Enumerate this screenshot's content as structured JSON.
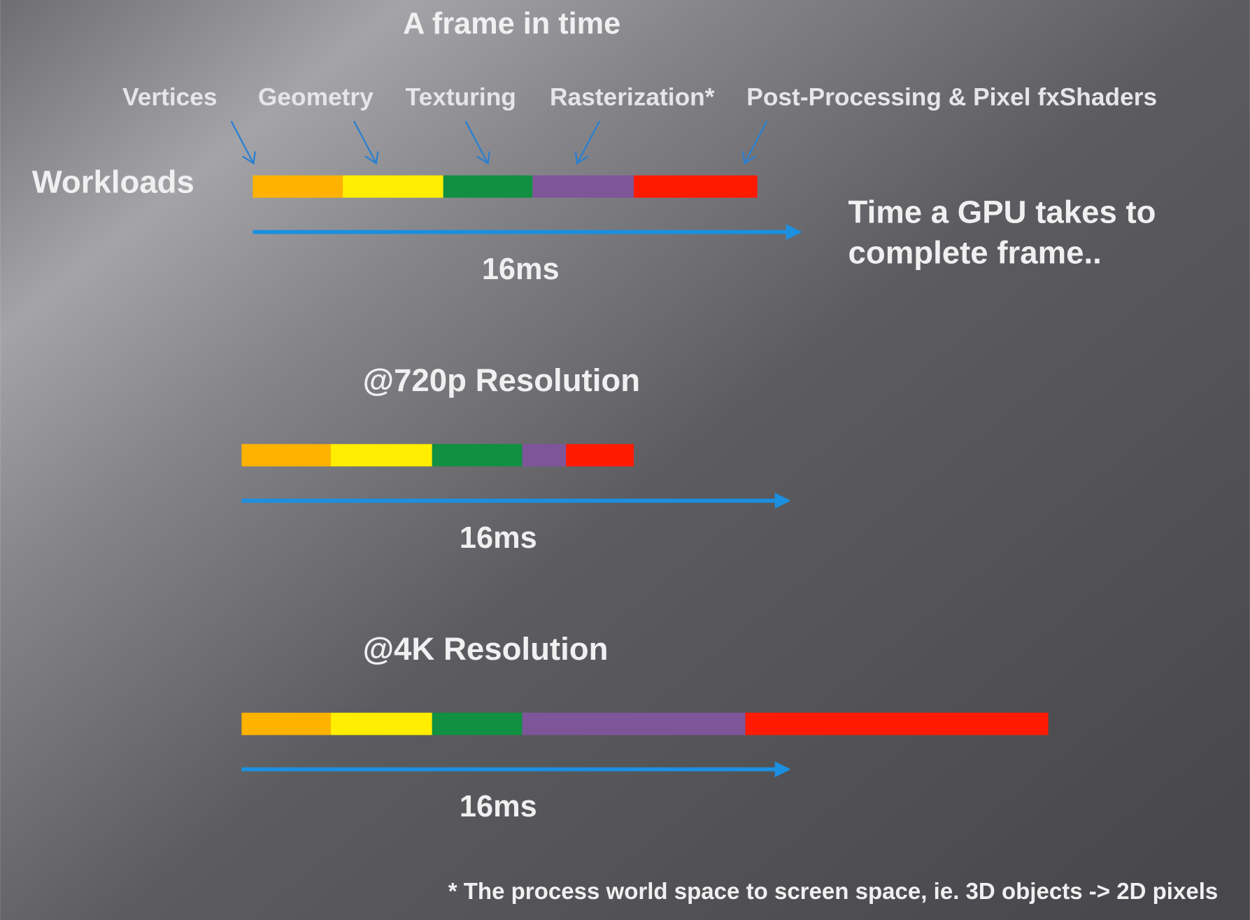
{
  "title": "A frame in time",
  "stages": [
    "Vertices",
    "Geometry",
    "Texturing",
    "Rasterization*",
    "Post-Processing & Pixel fxShaders"
  ],
  "workloads_label": "Workloads",
  "note": [
    "Time a GPU takes to",
    "complete frame.."
  ],
  "rows": [
    {
      "time": "16ms"
    },
    {
      "label": "@720p Resolution",
      "time": "16ms"
    },
    {
      "label": "@4K Resolution",
      "time": "16ms"
    }
  ],
  "footnote": "* The process world space to screen space, ie. 3D objects -> 2D pixels"
}
